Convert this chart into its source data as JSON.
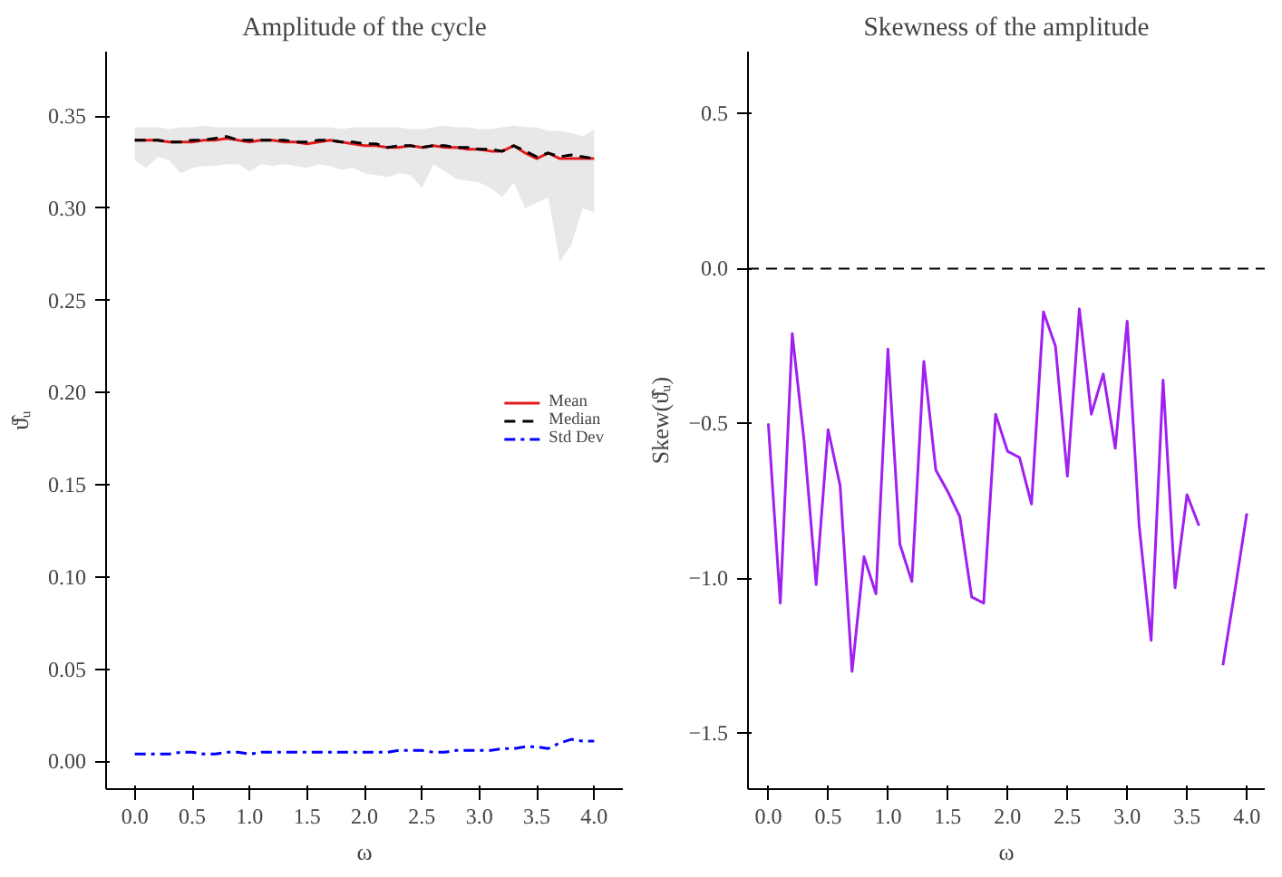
{
  "chart_data": [
    {
      "type": "line",
      "title": "Amplitude of the cycle",
      "xlabel": "ω",
      "ylabel": "ϑ̂ᵤ",
      "x": [
        0.0,
        0.1,
        0.2,
        0.3,
        0.4,
        0.5,
        0.6,
        0.7,
        0.8,
        0.9,
        1.0,
        1.1,
        1.2,
        1.3,
        1.4,
        1.5,
        1.6,
        1.7,
        1.8,
        1.9,
        2.0,
        2.1,
        2.2,
        2.3,
        2.4,
        2.5,
        2.6,
        2.7,
        2.8,
        2.9,
        3.0,
        3.1,
        3.2,
        3.3,
        3.4,
        3.5,
        3.6,
        3.7,
        3.8,
        3.9,
        4.0
      ],
      "series": [
        {
          "name": "Mean",
          "color": "#e31a1c",
          "line_style": "solid",
          "values": [
            0.337,
            0.337,
            0.337,
            0.336,
            0.336,
            0.336,
            0.337,
            0.337,
            0.338,
            0.337,
            0.336,
            0.337,
            0.337,
            0.336,
            0.336,
            0.335,
            0.336,
            0.337,
            0.336,
            0.335,
            0.334,
            0.334,
            0.333,
            0.333,
            0.334,
            0.333,
            0.334,
            0.333,
            0.333,
            0.332,
            0.332,
            0.331,
            0.331,
            0.334,
            0.33,
            0.327,
            0.33,
            0.327,
            0.327,
            0.327,
            0.327
          ],
          "lower": [
            0.326,
            0.322,
            0.328,
            0.326,
            0.319,
            0.322,
            0.323,
            0.323,
            0.324,
            0.324,
            0.32,
            0.324,
            0.323,
            0.324,
            0.323,
            0.322,
            0.324,
            0.323,
            0.321,
            0.322,
            0.319,
            0.318,
            0.317,
            0.319,
            0.318,
            0.311,
            0.324,
            0.32,
            0.316,
            0.315,
            0.314,
            0.311,
            0.306,
            0.314,
            0.3,
            0.303,
            0.306,
            0.271,
            0.28,
            0.3,
            0.298
          ],
          "upper": [
            0.344,
            0.344,
            0.344,
            0.343,
            0.344,
            0.344,
            0.345,
            0.344,
            0.344,
            0.344,
            0.344,
            0.344,
            0.344,
            0.344,
            0.344,
            0.344,
            0.344,
            0.344,
            0.343,
            0.344,
            0.344,
            0.344,
            0.344,
            0.344,
            0.343,
            0.343,
            0.344,
            0.345,
            0.344,
            0.344,
            0.343,
            0.343,
            0.344,
            0.345,
            0.344,
            0.344,
            0.342,
            0.342,
            0.341,
            0.339,
            0.343
          ]
        },
        {
          "name": "Median",
          "color": "#000000",
          "line_style": "dashed",
          "values": [
            0.337,
            0.337,
            0.337,
            0.336,
            0.336,
            0.337,
            0.337,
            0.338,
            0.339,
            0.337,
            0.337,
            0.337,
            0.337,
            0.337,
            0.336,
            0.336,
            0.337,
            0.337,
            0.336,
            0.336,
            0.335,
            0.335,
            0.333,
            0.334,
            0.334,
            0.333,
            0.334,
            0.334,
            0.333,
            0.333,
            0.332,
            0.332,
            0.331,
            0.334,
            0.331,
            0.328,
            0.33,
            0.328,
            0.329,
            0.328,
            0.327
          ]
        },
        {
          "name": "Std Dev",
          "color": "#0000ff",
          "line_style": "dashdot",
          "values": [
            0.004,
            0.004,
            0.004,
            0.004,
            0.005,
            0.005,
            0.004,
            0.004,
            0.005,
            0.005,
            0.004,
            0.005,
            0.005,
            0.005,
            0.005,
            0.005,
            0.005,
            0.005,
            0.005,
            0.005,
            0.005,
            0.005,
            0.005,
            0.006,
            0.006,
            0.006,
            0.005,
            0.005,
            0.006,
            0.006,
            0.006,
            0.006,
            0.007,
            0.007,
            0.008,
            0.008,
            0.007,
            0.01,
            0.012,
            0.011,
            0.011
          ]
        }
      ],
      "xlim": [
        -0.25,
        4.25
      ],
      "ylim": [
        -0.015,
        0.385
      ],
      "xticks": [
        {
          "value": 0,
          "label": "0.0"
        },
        0.5,
        {
          "value": 1,
          "label": "1.0"
        },
        1.5,
        {
          "value": 2,
          "label": "2.0"
        },
        2.5,
        {
          "value": 3,
          "label": "3.0"
        },
        3.5,
        {
          "value": 4,
          "label": "4.0"
        }
      ],
      "yticks": [
        {
          "value": 0,
          "label": "0.00"
        },
        0.05,
        {
          "value": 0.1,
          "label": "0.10"
        },
        0.15,
        {
          "value": 0.2,
          "label": "0.20"
        },
        0.25,
        {
          "value": 0.3,
          "label": "0.30"
        },
        0.35
      ],
      "grid": false,
      "legend": "right"
    },
    {
      "type": "line",
      "title": "Skewness of the amplitude",
      "xlabel": "ω",
      "ylabel": "Skew(ϑ̂ᵤ)",
      "x": [
        0.0,
        0.1,
        0.2,
        0.3,
        0.4,
        0.5,
        0.6,
        0.7,
        0.8,
        0.9,
        1.0,
        1.1,
        1.2,
        1.3,
        1.4,
        1.5,
        1.6,
        1.7,
        1.8,
        1.9,
        2.0,
        2.1,
        2.2,
        2.3,
        2.4,
        2.5,
        2.6,
        2.7,
        2.8,
        2.9,
        3.0,
        3.1,
        3.2,
        3.3,
        3.4,
        3.5,
        3.6,
        3.7,
        3.8,
        3.9,
        4.0
      ],
      "series": [
        {
          "color": "#a020f0",
          "line_style": "solid",
          "values": [
            -0.5,
            -1.08,
            -0.21,
            -0.56,
            -1.02,
            -0.52,
            -0.7,
            -1.3,
            -0.93,
            -1.05,
            -0.26,
            -0.89,
            -1.01,
            -0.3,
            -0.65,
            -0.72,
            -0.8,
            -1.06,
            -1.08,
            -0.47,
            -0.59,
            -0.61,
            -0.76,
            -0.14,
            -0.25,
            -0.67,
            -0.13,
            -0.47,
            -0.34,
            -0.58,
            -0.17,
            -0.83,
            -1.2,
            -0.36,
            -1.03,
            -0.73,
            -0.83,
            null,
            -1.28,
            -1.04,
            -0.79
          ]
        }
      ],
      "xlim": [
        -0.17,
        4.15
      ],
      "ylim": [
        -1.68,
        0.7
      ],
      "xticks": [
        {
          "value": 0,
          "label": "0.0"
        },
        0.5,
        {
          "value": 1,
          "label": "1.0"
        },
        1.5,
        {
          "value": 2,
          "label": "2.0"
        },
        2.5,
        {
          "value": 3,
          "label": "3.0"
        },
        3.5,
        {
          "value": 4,
          "label": "4.0"
        }
      ],
      "yticks": [
        {
          "value": -1.5,
          "label": "−1.5"
        },
        {
          "value": -1,
          "label": "−1.0"
        },
        {
          "value": -0.5,
          "label": "−0.5"
        },
        {
          "value": 0,
          "label": "0.0"
        },
        0.5
      ],
      "ref_lines": [
        {
          "axis": "y",
          "value": 0,
          "color": "#000000",
          "line_style": "dashed"
        }
      ],
      "grid": false,
      "legend": false
    }
  ]
}
